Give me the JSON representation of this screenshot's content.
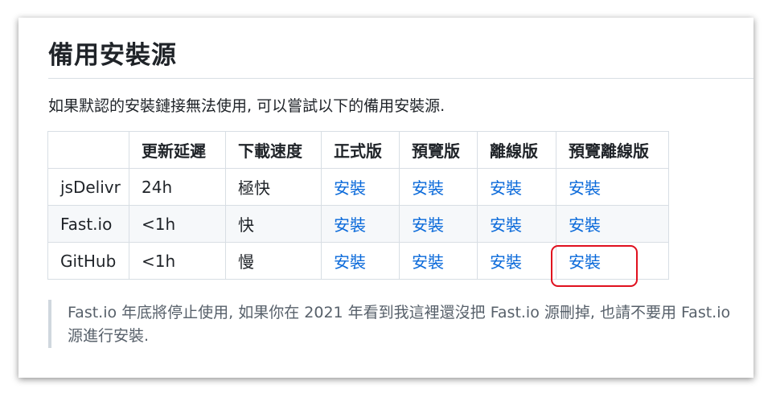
{
  "section": {
    "title": "備用安裝源",
    "intro": "如果默認的安裝鏈接無法使用, 可以嘗試以下的備用安裝源."
  },
  "table": {
    "headers": [
      "",
      "更新延遲",
      "下載速度",
      "正式版",
      "預覽版",
      "離線版",
      "預覽離線版"
    ],
    "rows": [
      {
        "name": "jsDelivr",
        "update_delay": "24h",
        "speed": "極快",
        "links": [
          "安裝",
          "安裝",
          "安裝",
          "安裝"
        ]
      },
      {
        "name": "Fast.io",
        "update_delay": "<1h",
        "speed": "快",
        "links": [
          "安裝",
          "安裝",
          "安裝",
          "安裝"
        ]
      },
      {
        "name": "GitHub",
        "update_delay": "<1h",
        "speed": "慢",
        "links": [
          "安裝",
          "安裝",
          "安裝",
          "安裝"
        ]
      }
    ]
  },
  "note": "Fast.io 年底將停止使用, 如果你在 2021 年看到我這裡還沒把 Fast.io 源刪掉, 也請不要用 Fast.io 源進行安裝.",
  "colors": {
    "link": "#0969da",
    "text": "#1f2328",
    "muted": "#57606a",
    "border": "#d8dee4",
    "highlight": "#e0101e",
    "row_alt": "#f6f8fa"
  }
}
